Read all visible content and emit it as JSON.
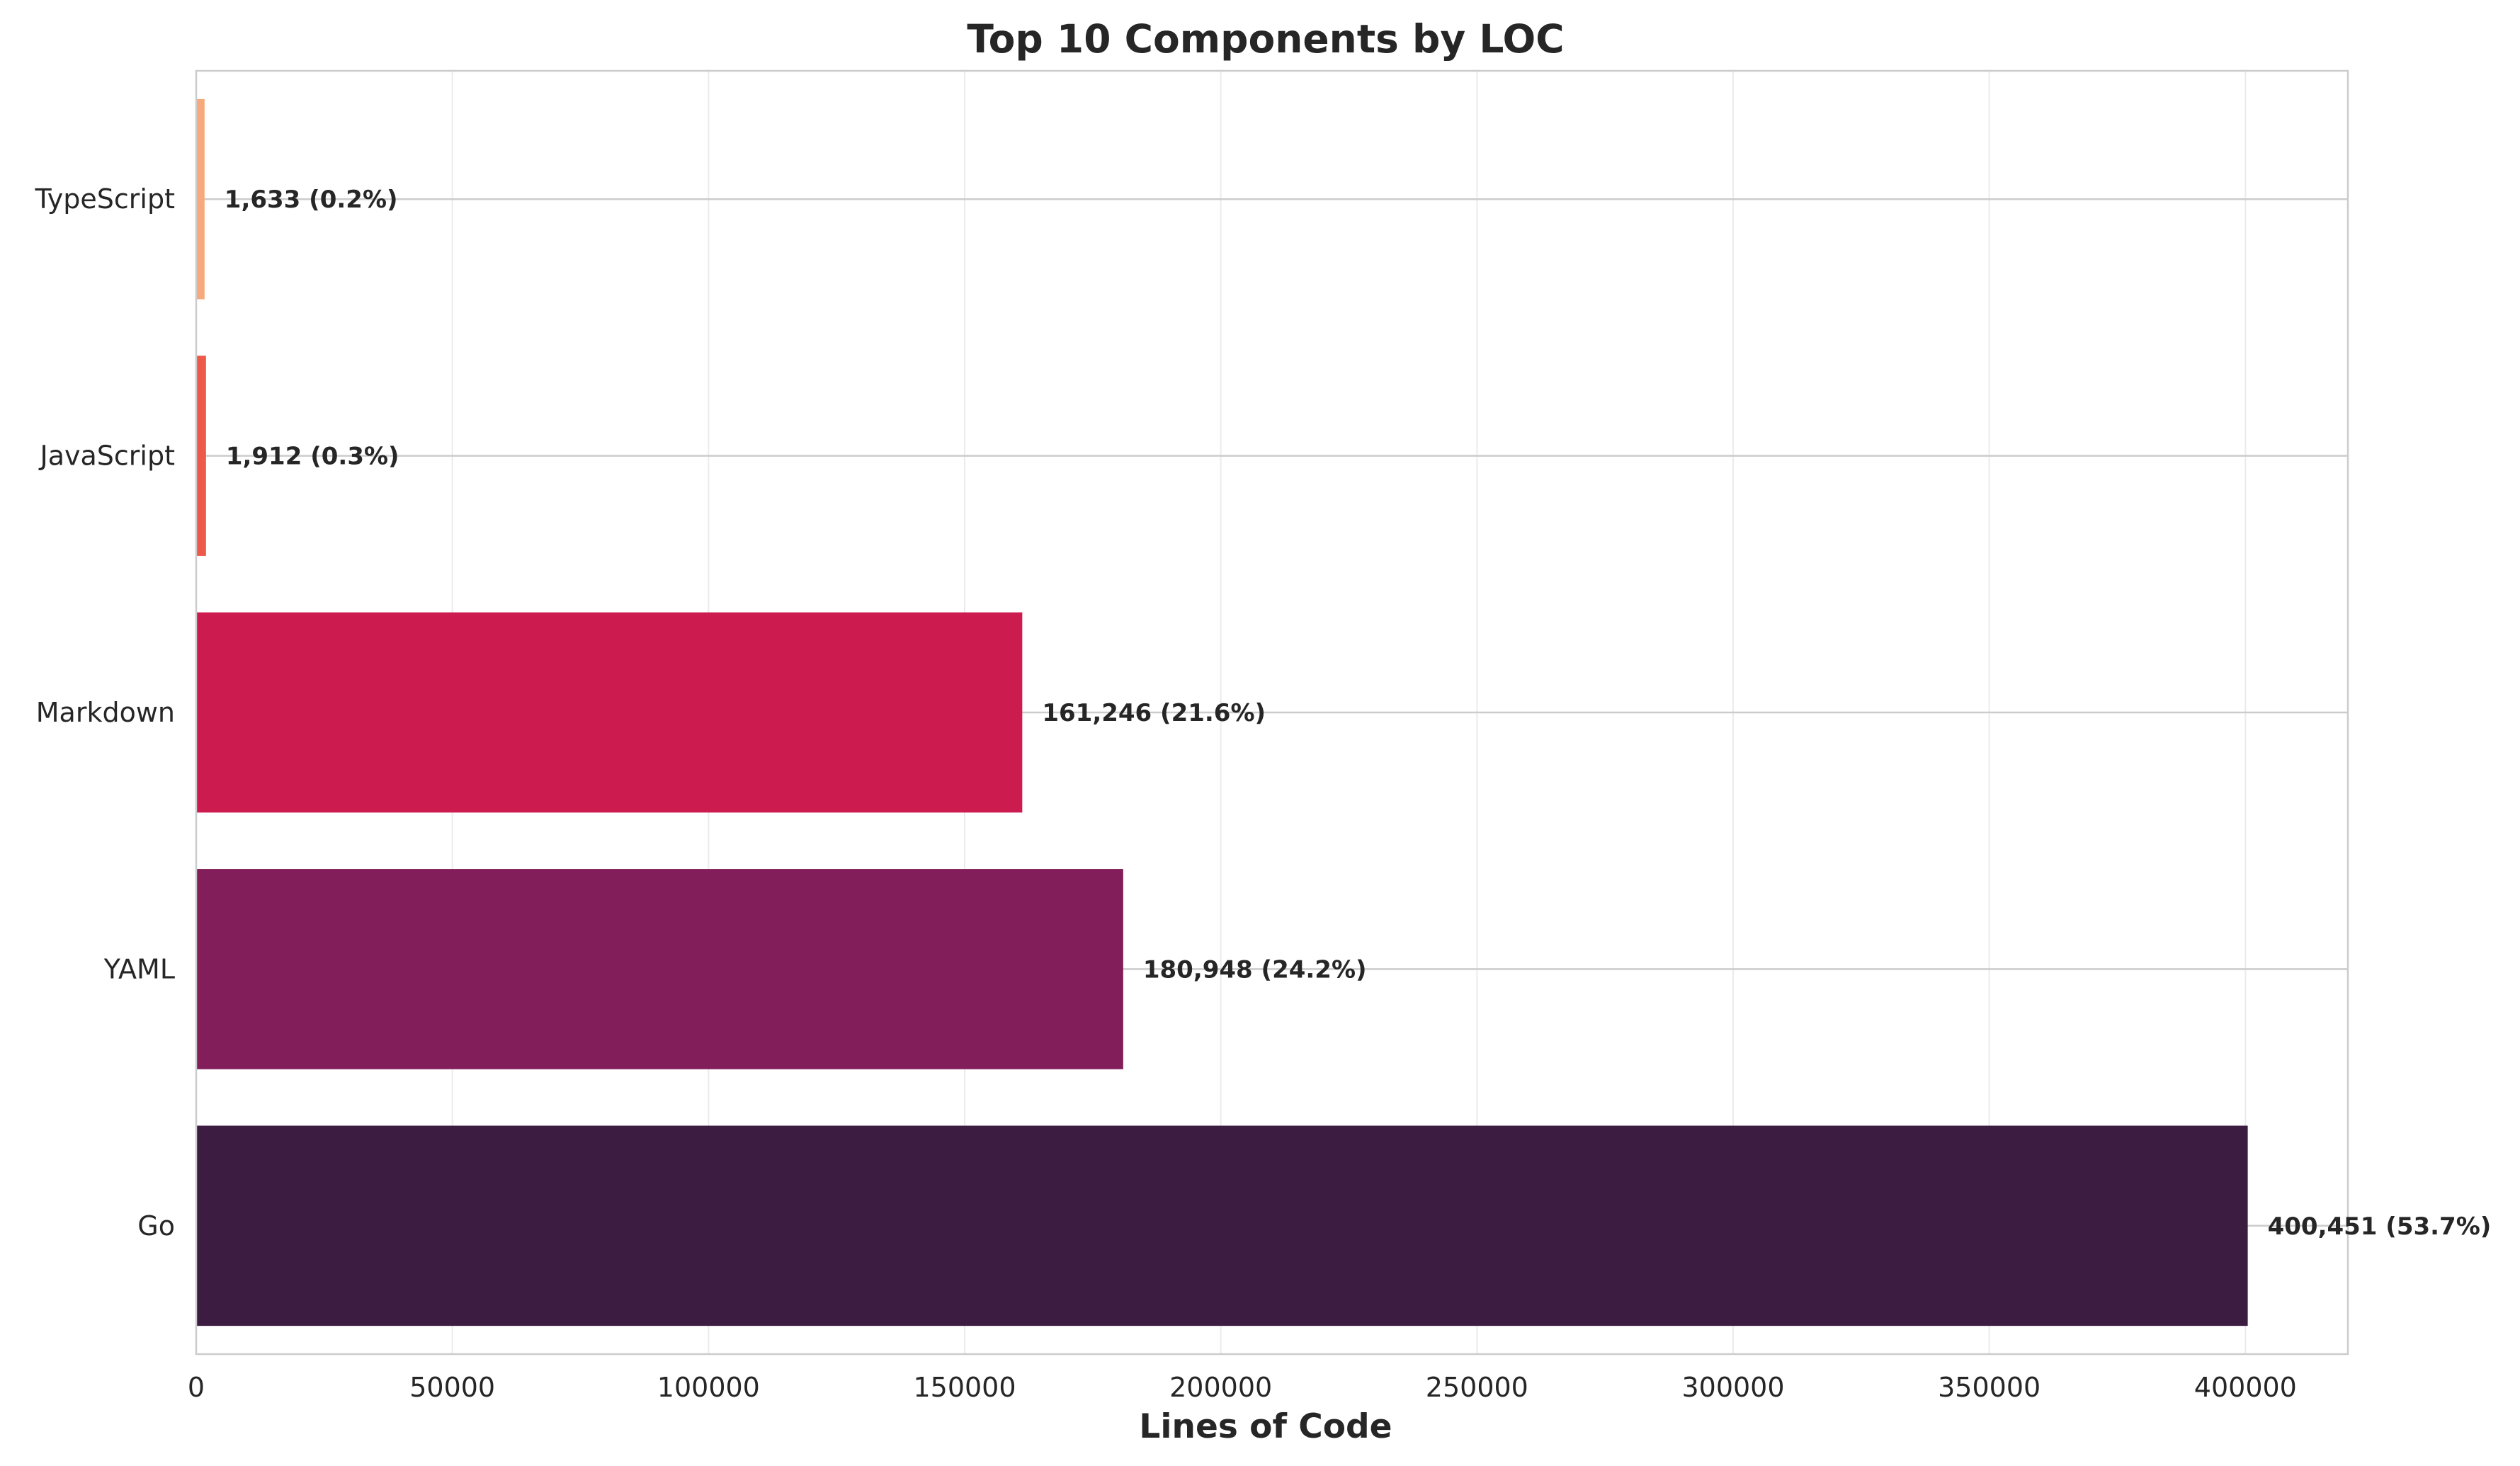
{
  "chart_data": {
    "type": "bar",
    "orientation": "horizontal",
    "title": "Top 10 Components by LOC",
    "xlabel": "Lines of Code",
    "ylabel": "",
    "xlim": [
      0,
      420000
    ],
    "xticks": [
      0,
      50000,
      100000,
      150000,
      200000,
      250000,
      300000,
      350000,
      400000
    ],
    "grid": true,
    "categories": [
      "Go",
      "YAML",
      "Markdown",
      "JavaScript",
      "TypeScript"
    ],
    "values": [
      400451,
      180948,
      161246,
      1912,
      1633
    ],
    "data_labels": [
      "400,451 (53.7%)",
      "180,948 (24.2%)",
      "161,246 (21.6%)",
      "1,912 (0.3%)",
      "1,633 (0.2%)"
    ],
    "colors": [
      "#3d1c42",
      "#821e5a",
      "#cb1b4f",
      "#ed5a4a",
      "#f6a97a"
    ]
  }
}
